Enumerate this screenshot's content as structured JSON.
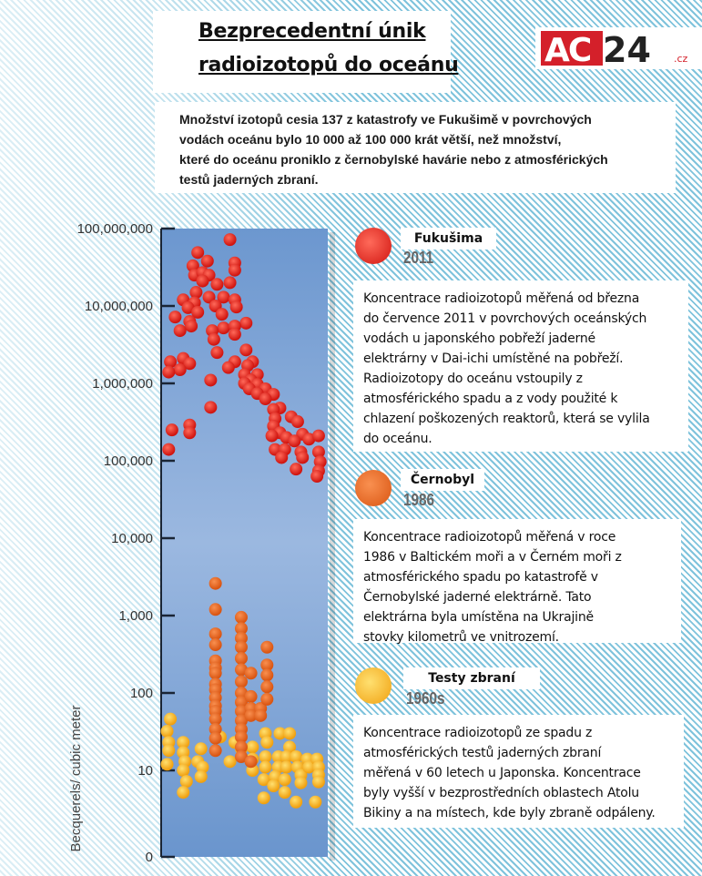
{
  "header": {
    "title_line1": "Bezprecedentní únik",
    "title_line2": "radioizotopů do oceánu",
    "logo_text": "AC24",
    "logo_suffix": ".cz"
  },
  "intro": {
    "lines": [
      "Množství izotopů cesia 137 z katastrofy ve Fukušimě v povrchových",
      "vodách oceánu bylo 10 000 až 100 000 krát větší, než množství,",
      "které do oceánu proniklo z černobylské havárie nebo z atmosférických",
      "testů jaderných zbraní."
    ]
  },
  "legend": [
    {
      "label": "Fukušima",
      "year": "2011",
      "color": "#e3201b",
      "lines": [
        "Koncentrace radioizotopů měřená od března",
        "do července 2011 v povrchových oceánských",
        "vodách u japonského pobřeží jaderné",
        "elektrárny v Dai-ichi umístěné na pobřeží.",
        "Radioizotopy do oceánu vstoupily z",
        "atmosférického spadu a z vody použité k",
        "chlazení poškozených reaktorů, která se vylila",
        "do oceánu."
      ]
    },
    {
      "label": "Černobyl",
      "year": "1986",
      "color": "#e8641c",
      "lines": [
        "Koncentrace radioizotopů měřená v roce",
        "1986 v Baltickém moři a v Černém moři z",
        "atmosférického spadu po katastrofě v",
        "Černobylské jaderné elektrárně. Tato",
        "elektrárna byla umístěna na Ukrajině",
        "stovky kilometrů ve vnitrozemí."
      ]
    },
    {
      "label": "Testy zbraní",
      "year": "1960s",
      "color": "#f7b518",
      "lines": [
        "Koncentrace radioizotopů ze spadu z",
        "atmosférických testů jaderných zbraní",
        "měřená v 60 letech u Japonska. Koncentrace",
        "byly vyšší v bezprostředních oblastech Atolu",
        "Bikiny a na místech, kde byly zbraně odpáleny."
      ]
    }
  ],
  "chart_data": {
    "type": "scatter",
    "ylabel": "Becquerels/ cubic meter",
    "yscale": "log",
    "ylim": [
      0,
      100000000
    ],
    "yticks": [
      {
        "v": 100000000,
        "label": "100,000,000"
      },
      {
        "v": 10000000,
        "label": "10,000,000"
      },
      {
        "v": 1000000,
        "label": "1,000,000"
      },
      {
        "v": 100000,
        "label": "100,000"
      },
      {
        "v": 10000,
        "label": "10,000"
      },
      {
        "v": 1000,
        "label": "1,000"
      },
      {
        "v": 100,
        "label": "100"
      },
      {
        "v": 10,
        "label": "10"
      },
      {
        "v": 0,
        "label": "0"
      }
    ],
    "x_axis": "unlabeled",
    "series": [
      {
        "name": "Fukušima",
        "color": "#e3201b",
        "points": [
          [
            41,
            72000000
          ],
          [
            21,
            49000000
          ],
          [
            27,
            38000000
          ],
          [
            18,
            33000000
          ],
          [
            44,
            36000000
          ],
          [
            44,
            29000000
          ],
          [
            19,
            25000000
          ],
          [
            24,
            27000000
          ],
          [
            28,
            25000000
          ],
          [
            24,
            21000000
          ],
          [
            33,
            19000000
          ],
          [
            41,
            20000000
          ],
          [
            12,
            12000000
          ],
          [
            20,
            15000000
          ],
          [
            28,
            13000000
          ],
          [
            37,
            13000000
          ],
          [
            44,
            12000000
          ],
          [
            19,
            11000000
          ],
          [
            32,
            10000000
          ],
          [
            45,
            9700000
          ],
          [
            15,
            9500000
          ],
          [
            21,
            8300000
          ],
          [
            36,
            7800000
          ],
          [
            7,
            7200000
          ],
          [
            16,
            6300000
          ],
          [
            51,
            6000000
          ],
          [
            17,
            5500000
          ],
          [
            37,
            5200000
          ],
          [
            44,
            5500000
          ],
          [
            30,
            4800000
          ],
          [
            10,
            4800000
          ],
          [
            44,
            4300000
          ],
          [
            31,
            3700000
          ],
          [
            33,
            2500000
          ],
          [
            51,
            2700000
          ],
          [
            4,
            1900000
          ],
          [
            12,
            2100000
          ],
          [
            16,
            1800000
          ],
          [
            10,
            1500000
          ],
          [
            3,
            1400000
          ],
          [
            44,
            1900000
          ],
          [
            40,
            1600000
          ],
          [
            55,
            1900000
          ],
          [
            52,
            1700000
          ],
          [
            58,
            1300000
          ],
          [
            50,
            1300000
          ],
          [
            54,
            1100000
          ],
          [
            50,
            1000000
          ],
          [
            58,
            970000
          ],
          [
            63,
            850000
          ],
          [
            53,
            850000
          ],
          [
            58,
            740000
          ],
          [
            68,
            720000
          ],
          [
            63,
            630000
          ],
          [
            29,
            1100000
          ],
          [
            29,
            490000
          ],
          [
            72,
            480000
          ],
          [
            68,
            460000
          ],
          [
            69,
            350000
          ],
          [
            79,
            370000
          ],
          [
            83,
            320000
          ],
          [
            68,
            280000
          ],
          [
            72,
            230000
          ],
          [
            67,
            210000
          ],
          [
            76,
            200000
          ],
          [
            86,
            220000
          ],
          [
            90,
            190000
          ],
          [
            96,
            210000
          ],
          [
            81,
            180000
          ],
          [
            69,
            140000
          ],
          [
            75,
            140000
          ],
          [
            85,
            130000
          ],
          [
            96,
            130000
          ],
          [
            73,
            110000
          ],
          [
            86,
            110000
          ],
          [
            97,
            97000
          ],
          [
            82,
            78000
          ],
          [
            96,
            74000
          ],
          [
            95,
            63000
          ],
          [
            5,
            250000
          ],
          [
            16,
            290000
          ],
          [
            16,
            230000
          ],
          [
            3,
            140000
          ]
        ]
      },
      {
        "name": "Černobyl",
        "color": "#e8641c",
        "points": [
          [
            32,
            2600
          ],
          [
            32,
            1200
          ],
          [
            32,
            580
          ],
          [
            32,
            420
          ],
          [
            32,
            260
          ],
          [
            32,
            210
          ],
          [
            32,
            180
          ],
          [
            32,
            130
          ],
          [
            32,
            110
          ],
          [
            32,
            87
          ],
          [
            32,
            68
          ],
          [
            32,
            58
          ],
          [
            32,
            46
          ],
          [
            32,
            34
          ],
          [
            32,
            26
          ],
          [
            32,
            18
          ],
          [
            48,
            950
          ],
          [
            48,
            680
          ],
          [
            48,
            510
          ],
          [
            48,
            390
          ],
          [
            48,
            280
          ],
          [
            48,
            200
          ],
          [
            48,
            140
          ],
          [
            48,
            100
          ],
          [
            48,
            76
          ],
          [
            48,
            58
          ],
          [
            48,
            44
          ],
          [
            48,
            34
          ],
          [
            48,
            27
          ],
          [
            48,
            20
          ],
          [
            48,
            15
          ],
          [
            54,
            180
          ],
          [
            54,
            90
          ],
          [
            54,
            63
          ],
          [
            54,
            51
          ],
          [
            54,
            13
          ],
          [
            60,
            63
          ],
          [
            60,
            51
          ],
          [
            64,
            390
          ],
          [
            64,
            230
          ],
          [
            64,
            170
          ],
          [
            64,
            120
          ],
          [
            64,
            83
          ]
        ]
      },
      {
        "name": "Testy zbraní",
        "color": "#f7b518",
        "points": [
          [
            4,
            46
          ],
          [
            2,
            32
          ],
          [
            3,
            23
          ],
          [
            3,
            18
          ],
          [
            2,
            12
          ],
          [
            12,
            23
          ],
          [
            12,
            17
          ],
          [
            13,
            13
          ],
          [
            12,
            10
          ],
          [
            14,
            7.2
          ],
          [
            12,
            5.2
          ],
          [
            23,
            19
          ],
          [
            21,
            13
          ],
          [
            24,
            11
          ],
          [
            23,
            8.3
          ],
          [
            35,
            27
          ],
          [
            41,
            13
          ],
          [
            44,
            23
          ],
          [
            48,
            19
          ],
          [
            55,
            20
          ],
          [
            55,
            14
          ],
          [
            55,
            10
          ],
          [
            63,
            30
          ],
          [
            64,
            23
          ],
          [
            63,
            15
          ],
          [
            63,
            11
          ],
          [
            62,
            7.6
          ],
          [
            62,
            4.4
          ],
          [
            72,
            30
          ],
          [
            78,
            30
          ],
          [
            78,
            20
          ],
          [
            71,
            15
          ],
          [
            71,
            11
          ],
          [
            69,
            8.3
          ],
          [
            68,
            6.3
          ],
          [
            76,
            15
          ],
          [
            76,
            11
          ],
          [
            75,
            7.6
          ],
          [
            75,
            5.2
          ],
          [
            82,
            15
          ],
          [
            83,
            11
          ],
          [
            85,
            8.7
          ],
          [
            85,
            6.9
          ],
          [
            82,
            3.9
          ],
          [
            89,
            14
          ],
          [
            90,
            11
          ],
          [
            95,
            14
          ],
          [
            96,
            11
          ],
          [
            96,
            8.7
          ],
          [
            96,
            7.1
          ],
          [
            94,
            3.9
          ]
        ]
      }
    ]
  }
}
